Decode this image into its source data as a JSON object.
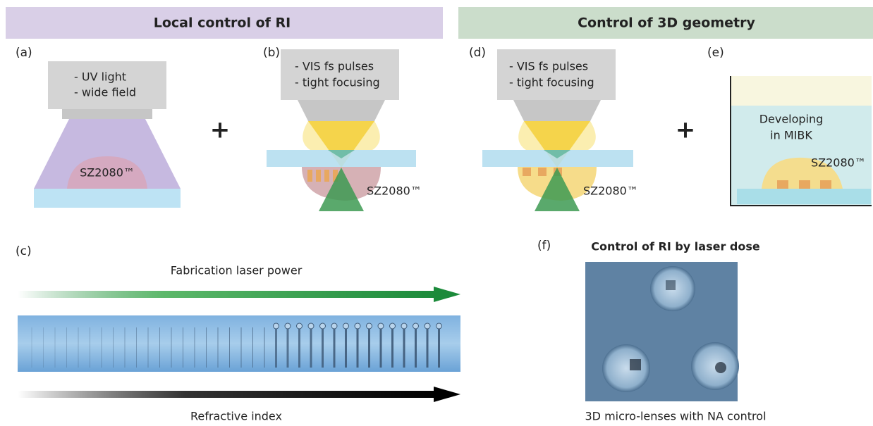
{
  "headers": {
    "left": "Local control of RI",
    "right": "Control of 3D geometry"
  },
  "operators": [
    "+",
    "+"
  ],
  "panel_a": {
    "label": "(a)",
    "lines": [
      "- UV light",
      "- wide field"
    ],
    "material": "SZ2080™"
  },
  "panel_b": {
    "label": "(b)",
    "lines": [
      "- VIS fs pulses",
      "- tight focusing"
    ],
    "material": "SZ2080™"
  },
  "panel_d": {
    "label": "(d)",
    "lines": [
      "- VIS fs pulses",
      "- tight focusing"
    ],
    "material": "SZ2080™"
  },
  "panel_e": {
    "label": "(e)",
    "lines": [
      "Developing",
      "in MIBK"
    ],
    "material": "SZ2080™"
  },
  "panel_c": {
    "label": "(c)",
    "top_arrow": "Fabrication laser power",
    "bottom_arrow": "Refractive index"
  },
  "panel_f": {
    "label": "(f)",
    "title": "Control of RI by laser dose",
    "caption": "3D micro-lenses with NA control"
  }
}
